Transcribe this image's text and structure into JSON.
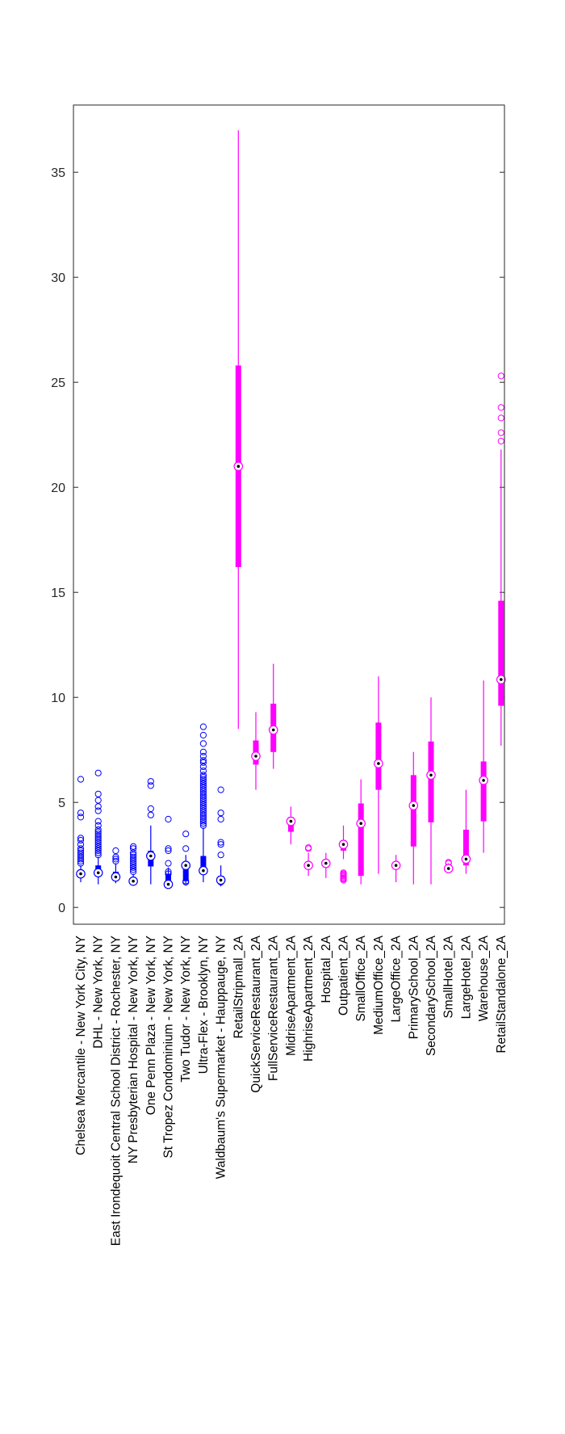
{
  "chart_data": {
    "type": "boxplot",
    "title": "",
    "xlabel": "",
    "ylabel": "",
    "ylim": [
      -0.8,
      38.2
    ],
    "yticks": [
      0,
      5,
      10,
      15,
      20,
      25,
      30,
      35
    ],
    "grid": false,
    "legend": "none",
    "colors": {
      "measured": "#0000ff",
      "reference": "#ff00ff"
    },
    "categories": [
      "Chelsea Mercantile - New York City, NY",
      "DHL - New York, NY",
      "East Irondequoit Central School District - Rochester, NY",
      "NY Presbyterian Hospital - New York, NY",
      "One Penn Plaza - New York, NY",
      "St Tropez Condominium - New York, NY",
      "Two Tudor - New York, NY",
      "Ultra-Flex - Brooklyn, NY",
      "Waldbaum's Supermarket - Hauppauge, NY",
      "RetailStripmall_2A",
      "QuickServiceRestaurant_2A",
      "FullServiceRestaurant_2A",
      "MidriseApartment_2A",
      "HighriseApartment_2A",
      "Hospital_2A",
      "Outpatient_2A",
      "SmallOffice_2A",
      "MediumOffice_2A",
      "LargeOffice_2A",
      "PrimarySchool_2A",
      "SecondarySchool_2A",
      "SmallHotel_2A",
      "LargeHotel_2A",
      "Warehouse_2A",
      "RetailStandalone_2A"
    ],
    "boxes": [
      {
        "group": "measured",
        "median": 1.6,
        "q1": 1.5,
        "q3": 1.75,
        "whisker_low": 1.2,
        "whisker_high": 2.0,
        "outliers": [
          2.1,
          2.2,
          2.3,
          2.4,
          2.5,
          2.6,
          2.7,
          2.8,
          3.0,
          3.2,
          3.3,
          4.3,
          4.5,
          6.1
        ]
      },
      {
        "group": "measured",
        "median": 1.65,
        "q1": 1.5,
        "q3": 2.0,
        "whisker_low": 1.1,
        "whisker_high": 2.4,
        "outliers": [
          2.5,
          2.6,
          2.7,
          2.8,
          2.9,
          3.0,
          3.1,
          3.2,
          3.3,
          3.4,
          3.5,
          3.6,
          3.7,
          3.9,
          4.1,
          4.6,
          4.8,
          5.1,
          5.4,
          6.4
        ]
      },
      {
        "group": "measured",
        "median": 1.45,
        "q1": 1.3,
        "q3": 1.7,
        "whisker_low": 1.15,
        "whisker_high": 2.1,
        "outliers": [
          2.2,
          2.3,
          2.4,
          2.7
        ]
      },
      {
        "group": "measured",
        "median": 1.25,
        "q1": 1.2,
        "q3": 1.4,
        "whisker_low": 1.1,
        "whisker_high": 1.6,
        "outliers": [
          1.7,
          1.8,
          1.9,
          2.0,
          2.1,
          2.2,
          2.3,
          2.4,
          2.5,
          2.6,
          2.8,
          2.9
        ]
      },
      {
        "group": "measured",
        "median": 2.45,
        "q1": 1.95,
        "q3": 2.7,
        "whisker_low": 1.1,
        "whisker_high": 3.9,
        "outliers": [
          4.4,
          4.7,
          5.8,
          6.0
        ]
      },
      {
        "group": "measured",
        "median": 1.1,
        "q1": 1.05,
        "q3": 1.6,
        "whisker_low": 1.0,
        "whisker_high": 1.9,
        "outliers": [
          1.6,
          1.7,
          2.1,
          2.7,
          2.8,
          4.2
        ]
      },
      {
        "group": "measured",
        "median": 2.0,
        "q1": 1.25,
        "q3": 2.1,
        "whisker_low": 1.1,
        "whisker_high": 2.5,
        "outliers": [
          1.2,
          1.25,
          2.8,
          3.5
        ]
      },
      {
        "group": "measured",
        "median": 1.75,
        "q1": 1.6,
        "q3": 2.45,
        "whisker_low": 1.2,
        "whisker_high": 3.8,
        "outliers": [
          3.9,
          4.0,
          4.1,
          4.2,
          4.3,
          4.4,
          4.5,
          4.6,
          4.7,
          4.8,
          4.9,
          5.0,
          5.1,
          5.2,
          5.3,
          5.4,
          5.5,
          5.6,
          5.7,
          5.8,
          5.9,
          6.0,
          6.1,
          6.2,
          6.3,
          6.5,
          6.7,
          6.9,
          7.0,
          7.2,
          7.4,
          7.8,
          8.2,
          8.6
        ]
      },
      {
        "group": "measured",
        "median": 1.3,
        "q1": 1.15,
        "q3": 1.5,
        "whisker_low": 1.0,
        "whisker_high": 2.0,
        "outliers": [
          1.2,
          1.3,
          2.5,
          3.0,
          3.1,
          4.2,
          4.5,
          5.6
        ]
      },
      {
        "group": "reference",
        "median": 21.0,
        "q1": 16.2,
        "q3": 25.8,
        "whisker_low": 8.5,
        "whisker_high": 37.0,
        "outliers": []
      },
      {
        "group": "reference",
        "median": 7.2,
        "q1": 6.8,
        "q3": 7.95,
        "whisker_low": 5.6,
        "whisker_high": 9.3,
        "outliers": []
      },
      {
        "group": "reference",
        "median": 8.45,
        "q1": 7.4,
        "q3": 9.7,
        "whisker_low": 6.6,
        "whisker_high": 11.6,
        "outliers": []
      },
      {
        "group": "reference",
        "median": 4.1,
        "q1": 3.6,
        "q3": 4.3,
        "whisker_low": 3.0,
        "whisker_high": 4.8,
        "outliers": []
      },
      {
        "group": "reference",
        "median": 2.0,
        "q1": 1.9,
        "q3": 2.15,
        "whisker_low": 1.5,
        "whisker_high": 2.6,
        "outliers": [
          2.8,
          2.85
        ]
      },
      {
        "group": "reference",
        "median": 2.1,
        "q1": 1.9,
        "q3": 2.25,
        "whisker_low": 1.4,
        "whisker_high": 2.6,
        "outliers": []
      },
      {
        "group": "reference",
        "median": 3.0,
        "q1": 2.7,
        "q3": 3.2,
        "whisker_low": 2.3,
        "whisker_high": 3.9,
        "outliers": [
          1.3,
          1.35,
          1.4,
          1.45,
          1.5,
          1.55,
          1.6,
          1.65
        ]
      },
      {
        "group": "reference",
        "median": 4.0,
        "q1": 1.5,
        "q3": 4.95,
        "whisker_low": 1.1,
        "whisker_high": 6.1,
        "outliers": []
      },
      {
        "group": "reference",
        "median": 6.85,
        "q1": 5.6,
        "q3": 8.8,
        "whisker_low": 1.6,
        "whisker_high": 11.0,
        "outliers": []
      },
      {
        "group": "reference",
        "median": 2.0,
        "q1": 1.85,
        "q3": 2.15,
        "whisker_low": 1.2,
        "whisker_high": 2.5,
        "outliers": []
      },
      {
        "group": "reference",
        "median": 4.85,
        "q1": 2.9,
        "q3": 6.3,
        "whisker_low": 1.1,
        "whisker_high": 7.4,
        "outliers": []
      },
      {
        "group": "reference",
        "median": 6.3,
        "q1": 4.05,
        "q3": 7.9,
        "whisker_low": 1.1,
        "whisker_high": 10.0,
        "outliers": []
      },
      {
        "group": "reference",
        "median": 1.85,
        "q1": 1.75,
        "q3": 2.0,
        "whisker_low": 1.65,
        "whisker_high": 2.1,
        "outliers": [
          2.1,
          2.15
        ]
      },
      {
        "group": "reference",
        "median": 2.3,
        "q1": 2.0,
        "q3": 3.7,
        "whisker_low": 1.6,
        "whisker_high": 5.6,
        "outliers": []
      },
      {
        "group": "reference",
        "median": 6.05,
        "q1": 4.1,
        "q3": 6.95,
        "whisker_low": 2.6,
        "whisker_high": 10.8,
        "outliers": []
      },
      {
        "group": "reference",
        "median": 10.85,
        "q1": 9.6,
        "q3": 14.6,
        "whisker_low": 7.7,
        "whisker_high": 21.8,
        "outliers": [
          22.2,
          22.6,
          23.3,
          23.8,
          25.3
        ]
      }
    ]
  }
}
